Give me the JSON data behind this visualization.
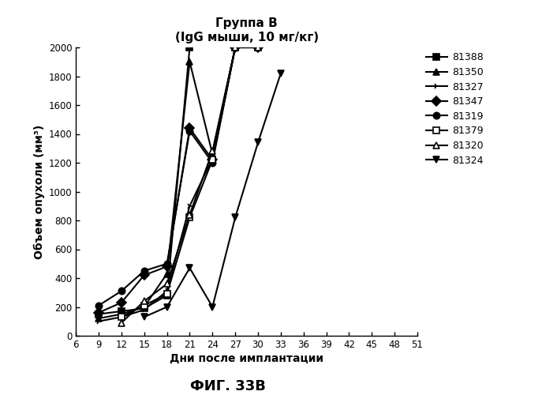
{
  "title_line1": "Группа В",
  "title_line2": "(IgG мыши, 10 мг/кг)",
  "xlabel": "Дни после имплантации",
  "ylabel": "Объем опухоли (мм³)",
  "caption": "ФИГ. 33В",
  "xlim": [
    6,
    51
  ],
  "ylim": [
    0,
    2000
  ],
  "xticks": [
    6,
    9,
    12,
    15,
    18,
    21,
    24,
    27,
    30,
    33,
    36,
    39,
    42,
    45,
    48,
    51
  ],
  "yticks": [
    0,
    200,
    400,
    600,
    800,
    1000,
    1200,
    1400,
    1600,
    1800,
    2000
  ],
  "series": [
    {
      "label": "81388",
      "marker": "s",
      "fillstyle": "full",
      "x": [
        9,
        12,
        15,
        18,
        21
      ],
      "y": [
        150,
        170,
        190,
        280,
        2000
      ]
    },
    {
      "label": "81350",
      "marker": "^",
      "fillstyle": "full",
      "x": [
        9,
        12,
        15,
        18,
        21,
        24,
        27,
        30
      ],
      "y": [
        120,
        150,
        200,
        430,
        1900,
        1260,
        2000,
        2000
      ]
    },
    {
      "label": "81327",
      "marker": "4",
      "fillstyle": "full",
      "x": [
        9,
        12,
        15,
        18,
        21,
        24,
        27,
        30
      ],
      "y": [
        100,
        130,
        180,
        310,
        900,
        1230,
        2000,
        2000
      ]
    },
    {
      "label": "81347",
      "marker": "D",
      "fillstyle": "full",
      "x": [
        9,
        12,
        15,
        18,
        21,
        24,
        27,
        30
      ],
      "y": [
        160,
        230,
        420,
        480,
        1440,
        1220,
        2000,
        2000
      ]
    },
    {
      "label": "81319",
      "marker": "o",
      "fillstyle": "full",
      "x": [
        9,
        12,
        15,
        18,
        21,
        24,
        27,
        30
      ],
      "y": [
        210,
        310,
        450,
        500,
        1420,
        1200,
        2000,
        2000
      ]
    },
    {
      "label": "81379",
      "marker": "s",
      "fillstyle": "none",
      "x": [
        12,
        15,
        18,
        21,
        24,
        27,
        30
      ],
      "y": [
        130,
        210,
        290,
        820,
        1220,
        2000,
        2000
      ]
    },
    {
      "label": "81320",
      "marker": "^",
      "fillstyle": "none",
      "x": [
        12,
        15,
        18,
        21,
        24,
        27,
        30
      ],
      "y": [
        90,
        240,
        360,
        840,
        1280,
        2000,
        2000
      ]
    },
    {
      "label": "81324",
      "marker": "v",
      "fillstyle": "full",
      "x": [
        15,
        18,
        21,
        24,
        27,
        30,
        33
      ],
      "y": [
        130,
        200,
        470,
        200,
        820,
        1340,
        1820
      ]
    }
  ],
  "color": "#000000",
  "linewidth": 1.5,
  "markersize": 6
}
